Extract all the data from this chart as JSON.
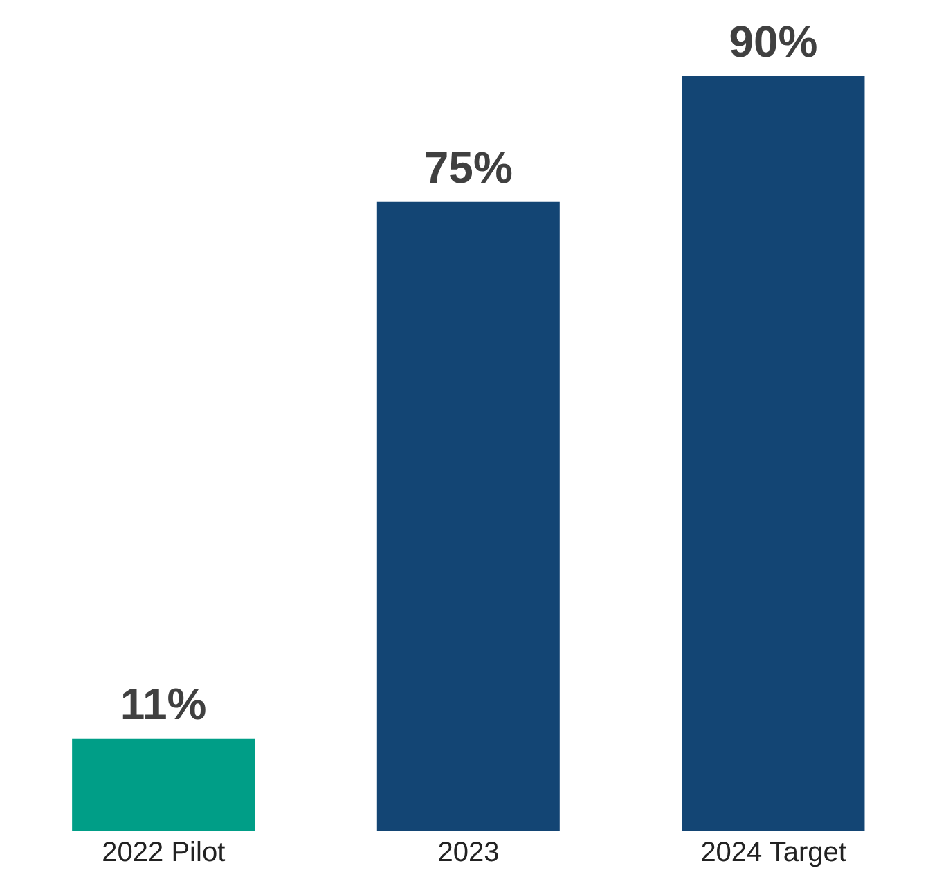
{
  "chart_data": {
    "type": "bar",
    "categories": [
      "2022 Pilot",
      "2023",
      "2024 Target"
    ],
    "values": [
      11,
      75,
      90
    ],
    "colors": [
      "#009e87",
      "#134574",
      "#134574"
    ],
    "value_labels": [
      "11%",
      "75%",
      "90%"
    ]
  }
}
